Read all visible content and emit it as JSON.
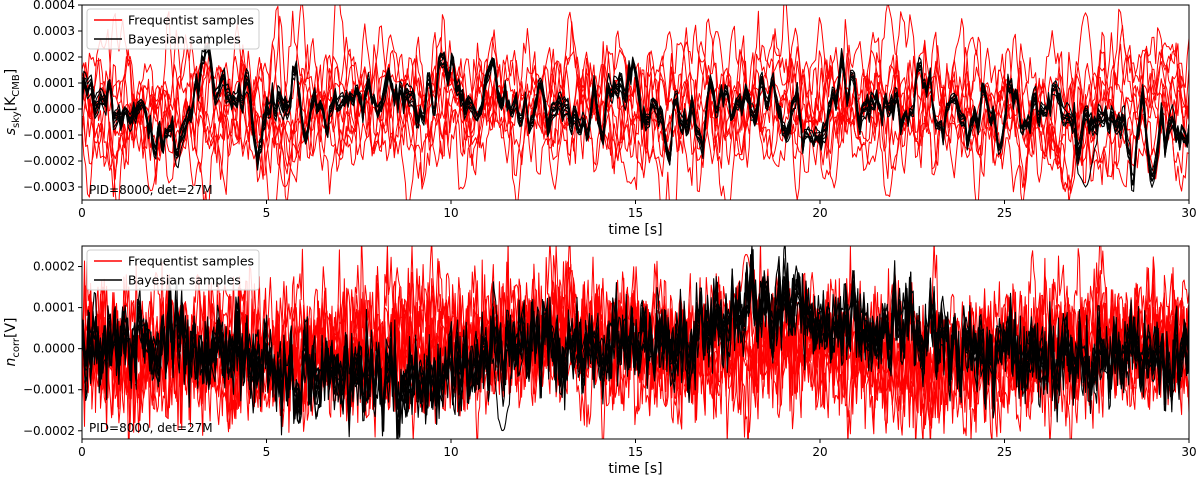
{
  "chart_data": [
    {
      "type": "line",
      "xlabel": "time [s]",
      "ylabel": "s_sky[K_CMB]",
      "ylabel_parts": {
        "main": "s",
        "sub1": "sky",
        "bracket_open": "[K",
        "sub2": "CMB",
        "bracket_close": "]"
      },
      "xlim": [
        0,
        30
      ],
      "ylim": [
        -0.00035,
        0.0004
      ],
      "xticks": [
        0,
        5,
        10,
        15,
        20,
        25,
        30
      ],
      "xtick_labels": [
        "0",
        "5",
        "10",
        "15",
        "20",
        "25",
        "30"
      ],
      "yticks": [
        -0.0003,
        -0.0002,
        -0.0001,
        0.0,
        0.0001,
        0.0002,
        0.0003,
        0.0004
      ],
      "ytick_labels": [
        "−0.0003",
        "−0.0002",
        "−0.0001",
        "0.0000",
        "0.0001",
        "0.0002",
        "0.0003",
        "0.0004"
      ],
      "legend": [
        "Frequentist samples",
        "Bayesian samples"
      ],
      "legend_position": "top-left",
      "annotation": "PID=8000, det=27M",
      "series": [
        {
          "name": "Frequentist samples",
          "color": "#ff0000",
          "count": 10,
          "typical_range": [
            -0.0003,
            0.00037
          ],
          "mean": 0.0
        },
        {
          "name": "Bayesian samples",
          "color": "#000000",
          "count": 10,
          "typical_range": [
            -0.0003,
            0.00024
          ],
          "mean": 0.0
        }
      ],
      "highlights": [
        {
          "series": "Frequentist samples",
          "x": 17.2,
          "y": 0.0003
        },
        {
          "series": "Frequentist samples",
          "x": 27.2,
          "y": 0.00037
        },
        {
          "series": "Frequentist samples",
          "x": 5.5,
          "y": -0.0003
        },
        {
          "series": "Bayesian samples",
          "x": 27.2,
          "y": -0.0003
        }
      ]
    },
    {
      "type": "line",
      "xlabel": "time [s]",
      "ylabel": "n_corr[V]",
      "ylabel_parts": {
        "main": "n",
        "sub1": "corr",
        "bracket_open": "[V",
        "sub2": "",
        "bracket_close": "]"
      },
      "xlim": [
        0,
        30
      ],
      "ylim": [
        -0.00022,
        0.00025
      ],
      "xticks": [
        0,
        5,
        10,
        15,
        20,
        25,
        30
      ],
      "xtick_labels": [
        "0",
        "5",
        "10",
        "15",
        "20",
        "25",
        "30"
      ],
      "yticks": [
        -0.0002,
        -0.0001,
        0.0,
        0.0001,
        0.0002
      ],
      "ytick_labels": [
        "−0.0002",
        "−0.0001",
        "0.0000",
        "0.0001",
        "0.0002"
      ],
      "legend": [
        "Frequentist samples",
        "Bayesian samples"
      ],
      "legend_position": "top-left",
      "annotation": "PID=8000, det=27M",
      "series": [
        {
          "name": "Frequentist samples",
          "color": "#ff0000",
          "count": 10,
          "typical_range": [
            -0.00017,
            0.00023
          ],
          "mean": 0.0
        },
        {
          "name": "Bayesian samples",
          "color": "#000000",
          "count": 10,
          "typical_range": [
            -0.0002,
            0.00015
          ],
          "mean": 0.0
        }
      ],
      "highlights": [
        {
          "series": "Frequentist samples",
          "x": 18.0,
          "y": 0.00023
        },
        {
          "series": "Bayesian samples",
          "x": 11.4,
          "y": -0.0002
        }
      ]
    }
  ]
}
